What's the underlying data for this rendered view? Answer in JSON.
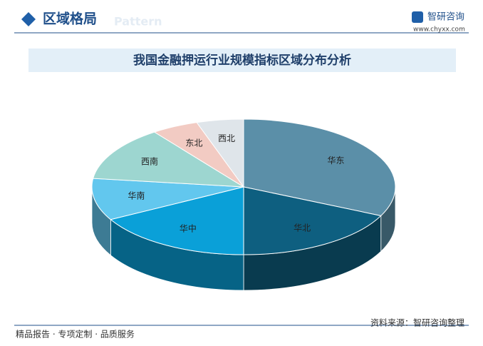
{
  "header": {
    "title": "区域格局",
    "watermark": "Pattern",
    "brand": "智研咨询",
    "url": "www.chyxx.com"
  },
  "chart_data": {
    "type": "pie",
    "title": "我国金融押运行业规模指标区域分布分析",
    "categories": [
      "华东",
      "华北",
      "华中",
      "华南",
      "西南",
      "东北",
      "西北"
    ],
    "values": [
      32,
      18,
      17,
      10,
      13,
      5,
      5
    ],
    "colors": [
      "#5b8fa8",
      "#0e5f80",
      "#0aa0d8",
      "#62c7ee",
      "#9dd6d0",
      "#f2cbc3",
      "#dfe5ea"
    ]
  },
  "footer": {
    "slogan": "精品报告 · 专项定制 · 品质服务",
    "source": "资料来源：智研咨询整理"
  }
}
